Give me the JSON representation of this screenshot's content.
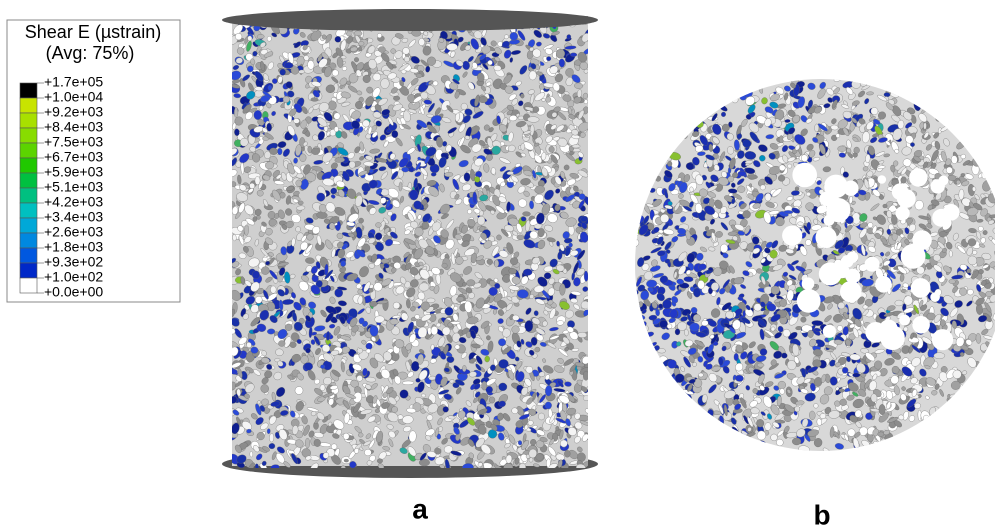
{
  "legend": {
    "title": [
      "Shear E (µstrain)",
      "(Avg: 75%)"
    ],
    "labels": [
      "+1.7e+05",
      "+1.0e+04",
      "+9.2e+03",
      "+8.4e+03",
      "+7.5e+03",
      "+6.7e+03",
      "+5.9e+03",
      "+5.1e+03",
      "+4.2e+03",
      "+3.4e+03",
      "+2.6e+03",
      "+1.8e+03",
      "+9.3e+02",
      "+1.0e+02",
      "+0.0e+00"
    ],
    "colors": [
      "#000000",
      "#c8e400",
      "#a8e000",
      "#88dc00",
      "#5cd400",
      "#20c800",
      "#00c040",
      "#00c080",
      "#00c0c0",
      "#00a8d8",
      "#0088e0",
      "#0058e0",
      "#0028c8",
      "#ffffff"
    ]
  },
  "panels": [
    {
      "label": "a"
    },
    {
      "label": "b"
    }
  ]
}
